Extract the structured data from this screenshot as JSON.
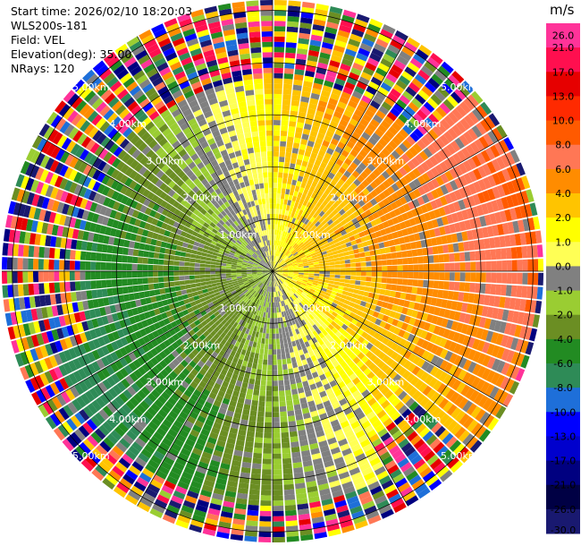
{
  "header": {
    "start_time": "Start time: 2026/02/10 18:20:03",
    "instrument": "WLS200s-181",
    "field": "Field: VEL",
    "elevation": "Elevation(deg): 35.00",
    "nrays": "NRays: 120"
  },
  "chart_data": {
    "type": "heatmap",
    "projection": "polar-ppi",
    "field": "VEL",
    "units": "m/s",
    "n_rays": 120,
    "elevation_deg": 35.0,
    "range_rings_km": [
      1.0,
      2.0,
      3.0,
      4.0,
      5.0
    ],
    "ring_labels": [
      "1.00km",
      "2.00km",
      "3.00km",
      "4.00km",
      "5.00km"
    ],
    "max_range_km": 5.2,
    "azimuth_lines_deg": [
      0,
      30,
      60,
      90,
      120,
      150,
      180,
      210,
      240,
      270,
      300,
      330
    ],
    "colorbar": {
      "unit_label": "m/s",
      "ticks": [
        "26.0",
        "21.0",
        "17.0",
        "13.0",
        "10.0",
        "8.0",
        "6.0",
        "4.0",
        "2.0",
        "1.0",
        "0.0",
        "-1.0",
        "-2.0",
        "-4.0",
        "-6.0",
        "-8.0",
        "-10.0",
        "-13.0",
        "-17.0",
        "-21.0",
        "-26.0",
        "-30.0"
      ],
      "colors": [
        "#ff3399",
        "#ff0f4f",
        "#e60000",
        "#ff2a00",
        "#ff5a00",
        "#ff7755",
        "#ff8c00",
        "#ffc400",
        "#ffff00",
        "#ffff55",
        "#808080",
        "#9acd32",
        "#6b8e23",
        "#228b22",
        "#2e8b57",
        "#1e6fd9",
        "#0000ff",
        "#0000cd",
        "#000080",
        "#000044",
        "#191970"
      ]
    },
    "regions": {
      "approach_side_dominant": "positive velocities (yellow-orange-red) toward the east/north-east",
      "recede_side_dominant": "negative velocities (green) toward the south/south-west",
      "far_range": "noise beyond ~3.5 km outside the east sector"
    }
  }
}
